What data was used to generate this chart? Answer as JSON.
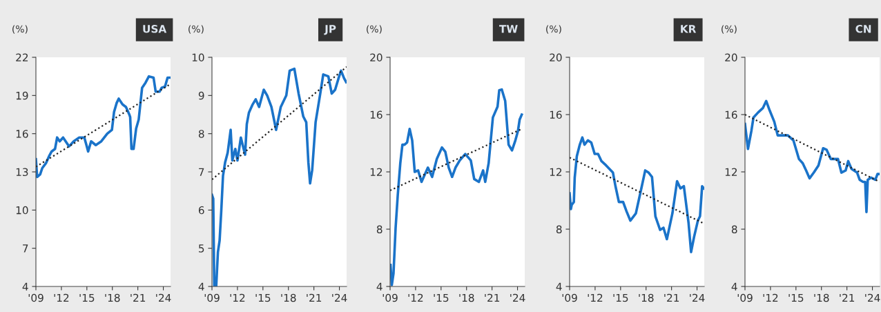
{
  "chart_data": [
    {
      "type": "line",
      "title": "USA",
      "ylabel": "(%)",
      "xlim": [
        2009,
        2024.85
      ],
      "ylim": [
        4,
        22
      ],
      "yticks": [
        4,
        7,
        10,
        13,
        16,
        19,
        22
      ],
      "xticks": [
        {
          "value": 2009,
          "label": "'09"
        },
        {
          "value": 2012,
          "label": "'12"
        },
        {
          "value": 2015,
          "label": "'15"
        },
        {
          "value": 2018,
          "label": "'18"
        },
        {
          "value": 2021,
          "label": "'21"
        },
        {
          "value": 2024,
          "label": "'24"
        }
      ],
      "grid": false,
      "legend": false,
      "series": [
        {
          "color": "#1a73c9",
          "line_style": "solid",
          "x": [
            2009.0,
            2009.15,
            2009.5,
            2009.75,
            2010.2,
            2010.6,
            2010.85,
            2011.25,
            2011.5,
            2011.8,
            2012.2,
            2012.9,
            2013.45,
            2014.1,
            2014.7,
            2014.95,
            2015.15,
            2015.5,
            2016.05,
            2016.7,
            2017.4,
            2017.95,
            2018.2,
            2018.5,
            2018.75,
            2019.2,
            2019.6,
            2020.0,
            2020.1,
            2020.25,
            2020.5,
            2020.8,
            2021.1,
            2021.5,
            2021.9,
            2022.3,
            2022.85,
            2023.1,
            2023.55,
            2023.8,
            2024.2,
            2024.5,
            2024.75
          ],
          "values": [
            14.0,
            12.6,
            12.8,
            13.3,
            13.7,
            14.3,
            14.6,
            14.8,
            15.7,
            15.4,
            15.7,
            15.0,
            15.4,
            15.7,
            15.7,
            15.1,
            14.6,
            15.4,
            15.1,
            15.4,
            16.0,
            16.3,
            17.7,
            18.4,
            18.75,
            18.3,
            18.1,
            17.5,
            17.3,
            14.8,
            14.8,
            16.4,
            17.1,
            19.6,
            20.0,
            20.5,
            20.4,
            19.3,
            19.3,
            19.6,
            19.7,
            20.4,
            20.4
          ]
        },
        {
          "color": "#222222",
          "line_style": "dotted",
          "x": [
            2009,
            2024.85
          ],
          "values": [
            13.4,
            19.9
          ]
        }
      ]
    },
    {
      "type": "line",
      "title": "JP",
      "ylabel": "(%)",
      "xlim": [
        2009,
        2024.85
      ],
      "ylim": [
        4,
        10
      ],
      "yticks": [
        4,
        5,
        6,
        7,
        8,
        9,
        10
      ],
      "xticks": [
        {
          "value": 2009,
          "label": "'09"
        },
        {
          "value": 2012,
          "label": "'12"
        },
        {
          "value": 2015,
          "label": "'15"
        },
        {
          "value": 2018,
          "label": "'18"
        },
        {
          "value": 2021,
          "label": "'21"
        },
        {
          "value": 2024,
          "label": "'24"
        }
      ],
      "grid": false,
      "legend": false,
      "series": [
        {
          "color": "#1a73c9",
          "line_style": "solid",
          "x": [
            2009.0,
            2009.15,
            2009.27,
            2009.5,
            2009.7,
            2009.9,
            2010.1,
            2010.3,
            2010.55,
            2010.85,
            2011.2,
            2011.4,
            2011.75,
            2012.0,
            2012.4,
            2012.9,
            2013.1,
            2013.35,
            2013.75,
            2014.15,
            2014.55,
            2015.1,
            2015.5,
            2016.0,
            2016.55,
            2017.1,
            2017.75,
            2018.15,
            2018.7,
            2019.2,
            2019.75,
            2020.1,
            2020.35,
            2020.55,
            2020.8,
            2021.2,
            2021.75,
            2022.1,
            2022.7,
            2023.1,
            2023.5,
            2023.9,
            2024.2,
            2024.55,
            2024.8
          ],
          "values": [
            6.4,
            6.3,
            4.0,
            4.0,
            4.9,
            5.2,
            6.0,
            6.9,
            7.25,
            7.5,
            8.1,
            7.3,
            7.6,
            7.3,
            7.9,
            7.45,
            8.25,
            8.55,
            8.75,
            8.9,
            8.7,
            9.15,
            9.0,
            8.7,
            8.1,
            8.7,
            9.0,
            9.65,
            9.7,
            9.05,
            8.45,
            8.3,
            7.25,
            6.7,
            7.05,
            8.3,
            9.05,
            9.55,
            9.5,
            9.05,
            9.15,
            9.45,
            9.65,
            9.45,
            9.35
          ]
        },
        {
          "color": "#222222",
          "line_style": "dotted",
          "x": [
            2009,
            2024.85
          ],
          "values": [
            6.8,
            9.75
          ]
        }
      ]
    },
    {
      "type": "line",
      "title": "TW",
      "ylabel": "(%)",
      "xlim": [
        2009,
        2024.85
      ],
      "ylim": [
        4,
        20
      ],
      "yticks": [
        4,
        8,
        12,
        16,
        20
      ],
      "xticks": [
        {
          "value": 2009,
          "label": "'09"
        },
        {
          "value": 2012,
          "label": "'12"
        },
        {
          "value": 2015,
          "label": "'15"
        },
        {
          "value": 2018,
          "label": "'18"
        },
        {
          "value": 2021,
          "label": "'21"
        },
        {
          "value": 2024,
          "label": "'24"
        }
      ],
      "grid": false,
      "legend": false,
      "series": [
        {
          "color": "#1a73c9",
          "line_style": "solid",
          "x": [
            2009.05,
            2009.2,
            2009.4,
            2009.65,
            2009.9,
            2010.2,
            2010.45,
            2010.7,
            2011.0,
            2011.3,
            2011.6,
            2011.9,
            2012.3,
            2012.7,
            2013.45,
            2013.95,
            2014.5,
            2015.1,
            2015.5,
            2015.9,
            2016.3,
            2016.7,
            2017.2,
            2017.85,
            2018.5,
            2018.9,
            2019.45,
            2019.95,
            2020.2,
            2020.6,
            2021.1,
            2021.65,
            2021.85,
            2022.15,
            2022.55,
            2022.95,
            2023.35,
            2023.75,
            2024.05,
            2024.25,
            2024.5
          ],
          "values": [
            5.5,
            4.1,
            4.9,
            8.1,
            10.35,
            12.6,
            13.9,
            13.9,
            14.05,
            15.0,
            14.2,
            12.0,
            12.1,
            11.3,
            12.3,
            11.65,
            12.9,
            13.7,
            13.4,
            12.3,
            11.65,
            12.3,
            12.8,
            13.25,
            12.8,
            11.5,
            11.3,
            12.1,
            11.3,
            12.6,
            15.8,
            16.55,
            17.7,
            17.75,
            16.95,
            13.9,
            13.5,
            14.2,
            14.85,
            15.65,
            16.0
          ]
        },
        {
          "color": "#222222",
          "line_style": "dotted",
          "x": [
            2009,
            2024.5
          ],
          "values": [
            10.7,
            15.0
          ]
        }
      ]
    },
    {
      "type": "line",
      "title": "KR",
      "ylabel": "(%)",
      "xlim": [
        2009,
        2024.85
      ],
      "ylim": [
        4,
        20
      ],
      "yticks": [
        4,
        8,
        12,
        16,
        20
      ],
      "xticks": [
        {
          "value": 2009,
          "label": "'09"
        },
        {
          "value": 2012,
          "label": "'12"
        },
        {
          "value": 2015,
          "label": "'15"
        },
        {
          "value": 2018,
          "label": "'18"
        },
        {
          "value": 2021,
          "label": "'21"
        },
        {
          "value": 2024,
          "label": "'24"
        }
      ],
      "grid": false,
      "legend": false,
      "series": [
        {
          "color": "#1a73c9",
          "line_style": "solid",
          "x": [
            2009.0,
            2009.15,
            2009.25,
            2009.5,
            2009.6,
            2009.85,
            2010.2,
            2010.5,
            2010.75,
            2011.15,
            2011.55,
            2011.95,
            2012.35,
            2012.75,
            2013.3,
            2014.1,
            2014.4,
            2014.8,
            2015.3,
            2015.7,
            2016.15,
            2016.8,
            2017.5,
            2017.9,
            2018.3,
            2018.7,
            2019.1,
            2019.65,
            2020.05,
            2020.45,
            2021.1,
            2021.65,
            2022.05,
            2022.45,
            2023.0,
            2023.3,
            2023.65,
            2024.1,
            2024.35,
            2024.6,
            2024.8
          ],
          "values": [
            10.5,
            9.4,
            9.7,
            9.9,
            11.6,
            13.1,
            13.9,
            14.4,
            13.9,
            14.2,
            14.05,
            13.25,
            13.25,
            12.75,
            12.45,
            11.95,
            11.0,
            9.9,
            9.9,
            9.25,
            8.6,
            9.1,
            11.0,
            12.1,
            11.95,
            11.65,
            8.9,
            7.95,
            8.1,
            7.3,
            9.1,
            11.35,
            10.85,
            11.0,
            8.45,
            6.4,
            7.45,
            8.6,
            8.9,
            11.0,
            10.85
          ]
        },
        {
          "color": "#222222",
          "line_style": "dotted",
          "x": [
            2009,
            2024.8
          ],
          "values": [
            13.0,
            8.4
          ]
        }
      ]
    },
    {
      "type": "line",
      "title": "CN",
      "ylabel": "(%)",
      "xlim": [
        2009,
        2024.85
      ],
      "ylim": [
        4,
        20
      ],
      "yticks": [
        4,
        8,
        12,
        16,
        20
      ],
      "xticks": [
        {
          "value": 2009,
          "label": "'09"
        },
        {
          "value": 2012,
          "label": "'12"
        },
        {
          "value": 2015,
          "label": "'15"
        },
        {
          "value": 2018,
          "label": "'18"
        },
        {
          "value": 2021,
          "label": "'21"
        },
        {
          "value": 2024,
          "label": "'24"
        }
      ],
      "grid": false,
      "legend": false,
      "series": [
        {
          "color": "#1a73c9",
          "line_style": "solid",
          "x": [
            2009.0,
            2009.35,
            2009.75,
            2010.0,
            2010.55,
            2011.1,
            2011.5,
            2011.9,
            2012.45,
            2012.85,
            2013.35,
            2014.05,
            2014.7,
            2015.35,
            2015.8,
            2016.2,
            2016.6,
            2017.1,
            2017.65,
            2018.2,
            2018.6,
            2019.1,
            2019.95,
            2020.35,
            2020.85,
            2021.15,
            2021.55,
            2022.2,
            2022.5,
            2022.9,
            2023.15,
            2023.3,
            2023.45,
            2023.85,
            2024.35,
            2024.6,
            2024.85
          ],
          "values": [
            15.35,
            13.6,
            14.85,
            15.8,
            16.15,
            16.45,
            16.95,
            16.3,
            15.5,
            14.55,
            14.55,
            14.55,
            14.2,
            12.9,
            12.6,
            12.1,
            11.55,
            11.95,
            12.45,
            13.65,
            13.55,
            12.9,
            12.9,
            11.95,
            12.1,
            12.75,
            12.2,
            11.95,
            11.45,
            11.3,
            11.3,
            9.2,
            11.45,
            11.6,
            11.45,
            11.85,
            11.85
          ]
        },
        {
          "color": "#222222",
          "line_style": "dotted",
          "x": [
            2009,
            2024.85
          ],
          "values": [
            16.0,
            11.3
          ]
        }
      ]
    }
  ]
}
